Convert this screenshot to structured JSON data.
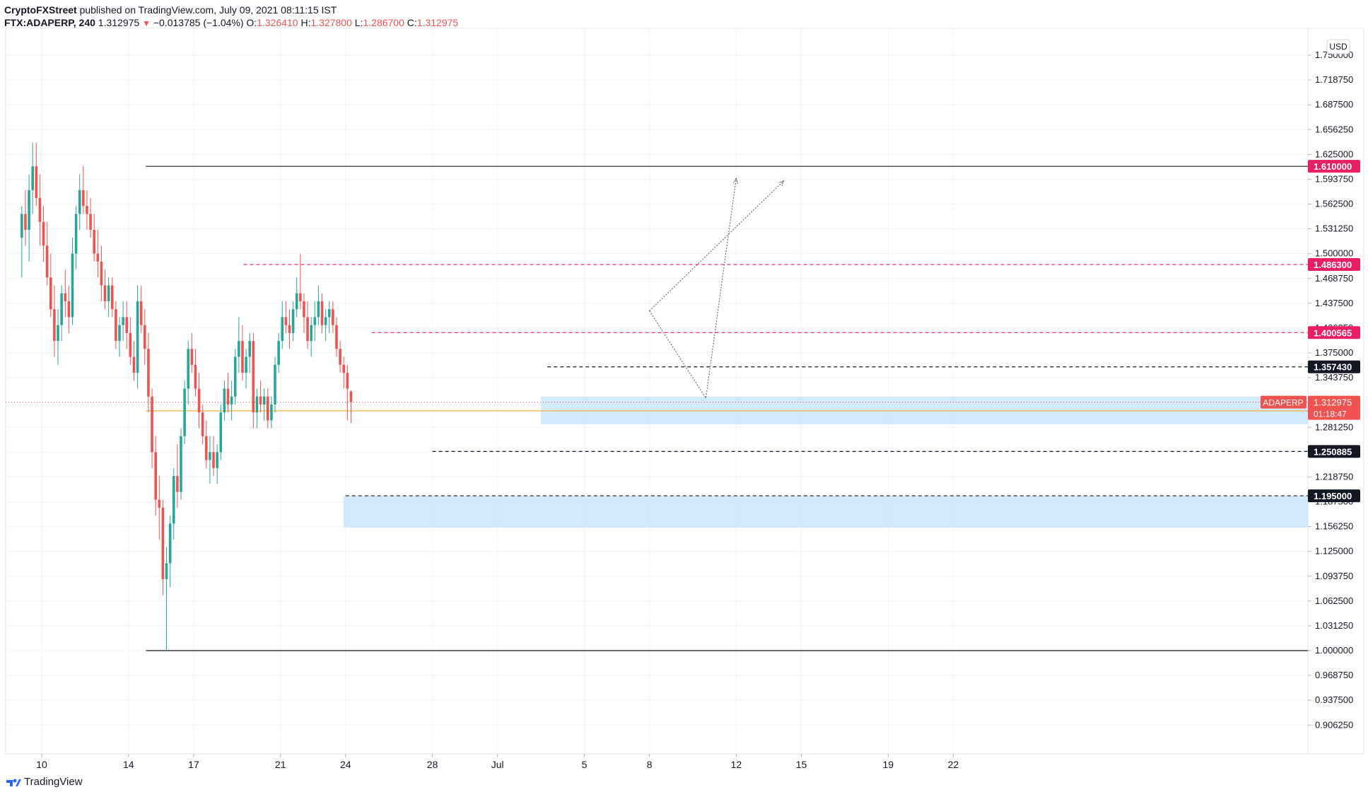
{
  "header": {
    "author": "CryptoFXStreet",
    "published": "published on TradingView.com, July 09, 2021 08:11:15 IST",
    "symbol": "FTX:ADAPERP, 240",
    "last": "1.312975",
    "change": "−0.013785 (−1.04%)",
    "o_label": "O:",
    "o": "1.326410",
    "h_label": "H:",
    "h": "1.327800",
    "l_label": "L:",
    "l": "1.286700",
    "c_label": "C:",
    "c": "1.312975"
  },
  "footer": {
    "brand": "TradingView"
  },
  "colors": {
    "up": "#26a69a",
    "down": "#ef5350",
    "zone": "#bbdefb",
    "pink": "#e91e63",
    "black": "#131722",
    "orange": "#f5a623",
    "grid": "#f0f3fa"
  },
  "chart_data": {
    "type": "candlestick",
    "title": "",
    "symbol": "FTX:ADAPERP",
    "interval": "240",
    "currency": "USD",
    "yticks": [
      "1.750000",
      "1.718750",
      "1.687500",
      "1.656250",
      "1.625000",
      "1.593750",
      "1.562500",
      "1.531250",
      "1.500000",
      "1.468750",
      "1.437500",
      "1.406250",
      "1.375000",
      "1.343750",
      "1.312500",
      "1.281250",
      "1.250000",
      "1.218750",
      "1.187500",
      "1.156250",
      "1.125000",
      "1.093750",
      "1.062500",
      "1.031250",
      "1.000000",
      "0.968750",
      "0.937500",
      "0.906250"
    ],
    "ylim": [
      0.875,
      1.765
    ],
    "xlabels": [
      {
        "label": "10",
        "day": 10
      },
      {
        "label": "14",
        "day": 14
      },
      {
        "label": "17",
        "day": 17
      },
      {
        "label": "21",
        "day": 21
      },
      {
        "label": "24",
        "day": 24
      },
      {
        "label": "28",
        "day": 28
      },
      {
        "label": "Jul",
        "day": 31
      },
      {
        "label": "5",
        "day": 35
      },
      {
        "label": "8",
        "day": 38
      },
      {
        "label": "12",
        "day": 42
      },
      {
        "label": "15",
        "day": 45
      },
      {
        "label": "19",
        "day": 49
      },
      {
        "label": "22",
        "day": 52
      }
    ],
    "x_start_day": 9,
    "candles_per_day": 6,
    "candles": [
      [
        1.52,
        1.56,
        1.47,
        1.55
      ],
      [
        1.55,
        1.58,
        1.51,
        1.53
      ],
      [
        1.53,
        1.6,
        1.49,
        1.58
      ],
      [
        1.58,
        1.64,
        1.55,
        1.61
      ],
      [
        1.61,
        1.64,
        1.56,
        1.57
      ],
      [
        1.57,
        1.6,
        1.51,
        1.54
      ],
      [
        1.54,
        1.56,
        1.49,
        1.51
      ],
      [
        1.51,
        1.54,
        1.46,
        1.47
      ],
      [
        1.47,
        1.5,
        1.42,
        1.43
      ],
      [
        1.43,
        1.46,
        1.37,
        1.39
      ],
      [
        1.39,
        1.43,
        1.36,
        1.41
      ],
      [
        1.41,
        1.46,
        1.39,
        1.45
      ],
      [
        1.45,
        1.48,
        1.42,
        1.44
      ],
      [
        1.44,
        1.46,
        1.4,
        1.42
      ],
      [
        1.42,
        1.52,
        1.41,
        1.5
      ],
      [
        1.5,
        1.56,
        1.48,
        1.55
      ],
      [
        1.55,
        1.6,
        1.53,
        1.58
      ],
      [
        1.58,
        1.61,
        1.55,
        1.56
      ],
      [
        1.56,
        1.58,
        1.53,
        1.55
      ],
      [
        1.55,
        1.57,
        1.52,
        1.53
      ],
      [
        1.53,
        1.55,
        1.49,
        1.5
      ],
      [
        1.5,
        1.53,
        1.47,
        1.49
      ],
      [
        1.49,
        1.51,
        1.44,
        1.46
      ],
      [
        1.46,
        1.48,
        1.43,
        1.44
      ],
      [
        1.44,
        1.47,
        1.42,
        1.46
      ],
      [
        1.46,
        1.47,
        1.42,
        1.43
      ],
      [
        1.43,
        1.44,
        1.38,
        1.39
      ],
      [
        1.39,
        1.42,
        1.37,
        1.41
      ],
      [
        1.41,
        1.44,
        1.39,
        1.42
      ],
      [
        1.42,
        1.44,
        1.38,
        1.4
      ],
      [
        1.4,
        1.42,
        1.36,
        1.37
      ],
      [
        1.37,
        1.39,
        1.34,
        1.35
      ],
      [
        1.35,
        1.46,
        1.33,
        1.44
      ],
      [
        1.44,
        1.46,
        1.4,
        1.41
      ],
      [
        1.41,
        1.43,
        1.36,
        1.38
      ],
      [
        1.38,
        1.4,
        1.3,
        1.32
      ],
      [
        1.32,
        1.33,
        1.23,
        1.25
      ],
      [
        1.25,
        1.27,
        1.17,
        1.19
      ],
      [
        1.19,
        1.22,
        1.14,
        1.18
      ],
      [
        1.18,
        1.19,
        1.07,
        1.09
      ],
      [
        1.09,
        1.13,
        1.0,
        1.11
      ],
      [
        1.11,
        1.17,
        1.08,
        1.16
      ],
      [
        1.16,
        1.23,
        1.14,
        1.22
      ],
      [
        1.22,
        1.26,
        1.18,
        1.2
      ],
      [
        1.2,
        1.28,
        1.19,
        1.27
      ],
      [
        1.27,
        1.34,
        1.26,
        1.33
      ],
      [
        1.33,
        1.39,
        1.31,
        1.38
      ],
      [
        1.38,
        1.4,
        1.35,
        1.36
      ],
      [
        1.36,
        1.38,
        1.32,
        1.33
      ],
      [
        1.33,
        1.35,
        1.28,
        1.3
      ],
      [
        1.3,
        1.31,
        1.26,
        1.27
      ],
      [
        1.27,
        1.29,
        1.23,
        1.24
      ],
      [
        1.24,
        1.27,
        1.21,
        1.25
      ],
      [
        1.25,
        1.27,
        1.22,
        1.23
      ],
      [
        1.23,
        1.26,
        1.21,
        1.25
      ],
      [
        1.25,
        1.31,
        1.24,
        1.3
      ],
      [
        1.3,
        1.34,
        1.29,
        1.33
      ],
      [
        1.33,
        1.35,
        1.3,
        1.31
      ],
      [
        1.31,
        1.34,
        1.29,
        1.32
      ],
      [
        1.32,
        1.38,
        1.31,
        1.37
      ],
      [
        1.37,
        1.42,
        1.35,
        1.39
      ],
      [
        1.39,
        1.41,
        1.34,
        1.35
      ],
      [
        1.35,
        1.38,
        1.33,
        1.37
      ],
      [
        1.37,
        1.4,
        1.35,
        1.39
      ],
      [
        1.39,
        1.4,
        1.28,
        1.3
      ],
      [
        1.3,
        1.33,
        1.28,
        1.32
      ],
      [
        1.32,
        1.34,
        1.3,
        1.31
      ],
      [
        1.31,
        1.33,
        1.29,
        1.32
      ],
      [
        1.32,
        1.33,
        1.28,
        1.29
      ],
      [
        1.29,
        1.32,
        1.28,
        1.31
      ],
      [
        1.31,
        1.37,
        1.3,
        1.36
      ],
      [
        1.36,
        1.4,
        1.35,
        1.39
      ],
      [
        1.39,
        1.44,
        1.38,
        1.42
      ],
      [
        1.42,
        1.44,
        1.4,
        1.41
      ],
      [
        1.41,
        1.43,
        1.38,
        1.4
      ],
      [
        1.4,
        1.44,
        1.39,
        1.43
      ],
      [
        1.43,
        1.47,
        1.42,
        1.45
      ],
      [
        1.45,
        1.5,
        1.43,
        1.44
      ],
      [
        1.44,
        1.45,
        1.4,
        1.42
      ],
      [
        1.42,
        1.44,
        1.38,
        1.39
      ],
      [
        1.39,
        1.42,
        1.37,
        1.41
      ],
      [
        1.41,
        1.44,
        1.39,
        1.42
      ],
      [
        1.42,
        1.46,
        1.41,
        1.44
      ],
      [
        1.44,
        1.45,
        1.4,
        1.41
      ],
      [
        1.41,
        1.43,
        1.39,
        1.42
      ],
      [
        1.42,
        1.44,
        1.4,
        1.43
      ],
      [
        1.43,
        1.44,
        1.4,
        1.41
      ],
      [
        1.41,
        1.42,
        1.37,
        1.38
      ],
      [
        1.38,
        1.39,
        1.35,
        1.36
      ],
      [
        1.36,
        1.37,
        1.33,
        1.35
      ],
      [
        1.35,
        1.36,
        1.29,
        1.33
      ],
      [
        1.32641,
        1.3278,
        1.2867,
        1.312975
      ]
    ],
    "horizontal_levels": [
      {
        "value": 1.61,
        "label": "1.610000",
        "style": "solid",
        "color": "#131722",
        "tag_color": "#e91e63",
        "start_day": 14.8
      },
      {
        "value": 1.4863,
        "label": "1.486300",
        "style": "dashed",
        "color": "#e91e63",
        "tag_color": "#e91e63",
        "start_day": 19.3
      },
      {
        "value": 1.400565,
        "label": "1.400565",
        "style": "dashed",
        "color": "#e91e63",
        "tag_color": "#e91e63",
        "start_day": 25.2
      },
      {
        "value": 1.35743,
        "label": "1.357430",
        "style": "dashed",
        "color": "#131722",
        "tag_color": "#131722",
        "start_day": 33.3
      },
      {
        "value": 1.250885,
        "label": "1.250885",
        "style": "dashed",
        "color": "#131722",
        "tag_color": "#131722",
        "start_day": 28.0
      },
      {
        "value": 1.195,
        "label": "1.195000",
        "style": "dashed",
        "color": "#131722",
        "tag_color": "#131722",
        "start_day": 24.0
      },
      {
        "value": 1.0,
        "label": "",
        "style": "solid",
        "color": "#131722",
        "tag_color": "",
        "start_day": 14.8
      }
    ],
    "zones": [
      {
        "y_top": 1.32,
        "y_bottom": 1.285,
        "start_day": 33.0
      },
      {
        "y_top": 1.195,
        "y_bottom": 1.155,
        "start_day": 23.9
      }
    ],
    "orange_line": {
      "value": 1.302,
      "start_day": 14.8
    },
    "projections": [
      [
        [
          38.0,
          1.428
        ],
        [
          40.6,
          1.318
        ],
        [
          42.0,
          1.595
        ]
      ],
      [
        [
          38.0,
          1.428
        ],
        [
          44.2,
          1.592
        ]
      ]
    ],
    "price_tag": {
      "symbol": "ADAPERP",
      "price": "1.312975",
      "countdown": "01:18:47"
    }
  }
}
